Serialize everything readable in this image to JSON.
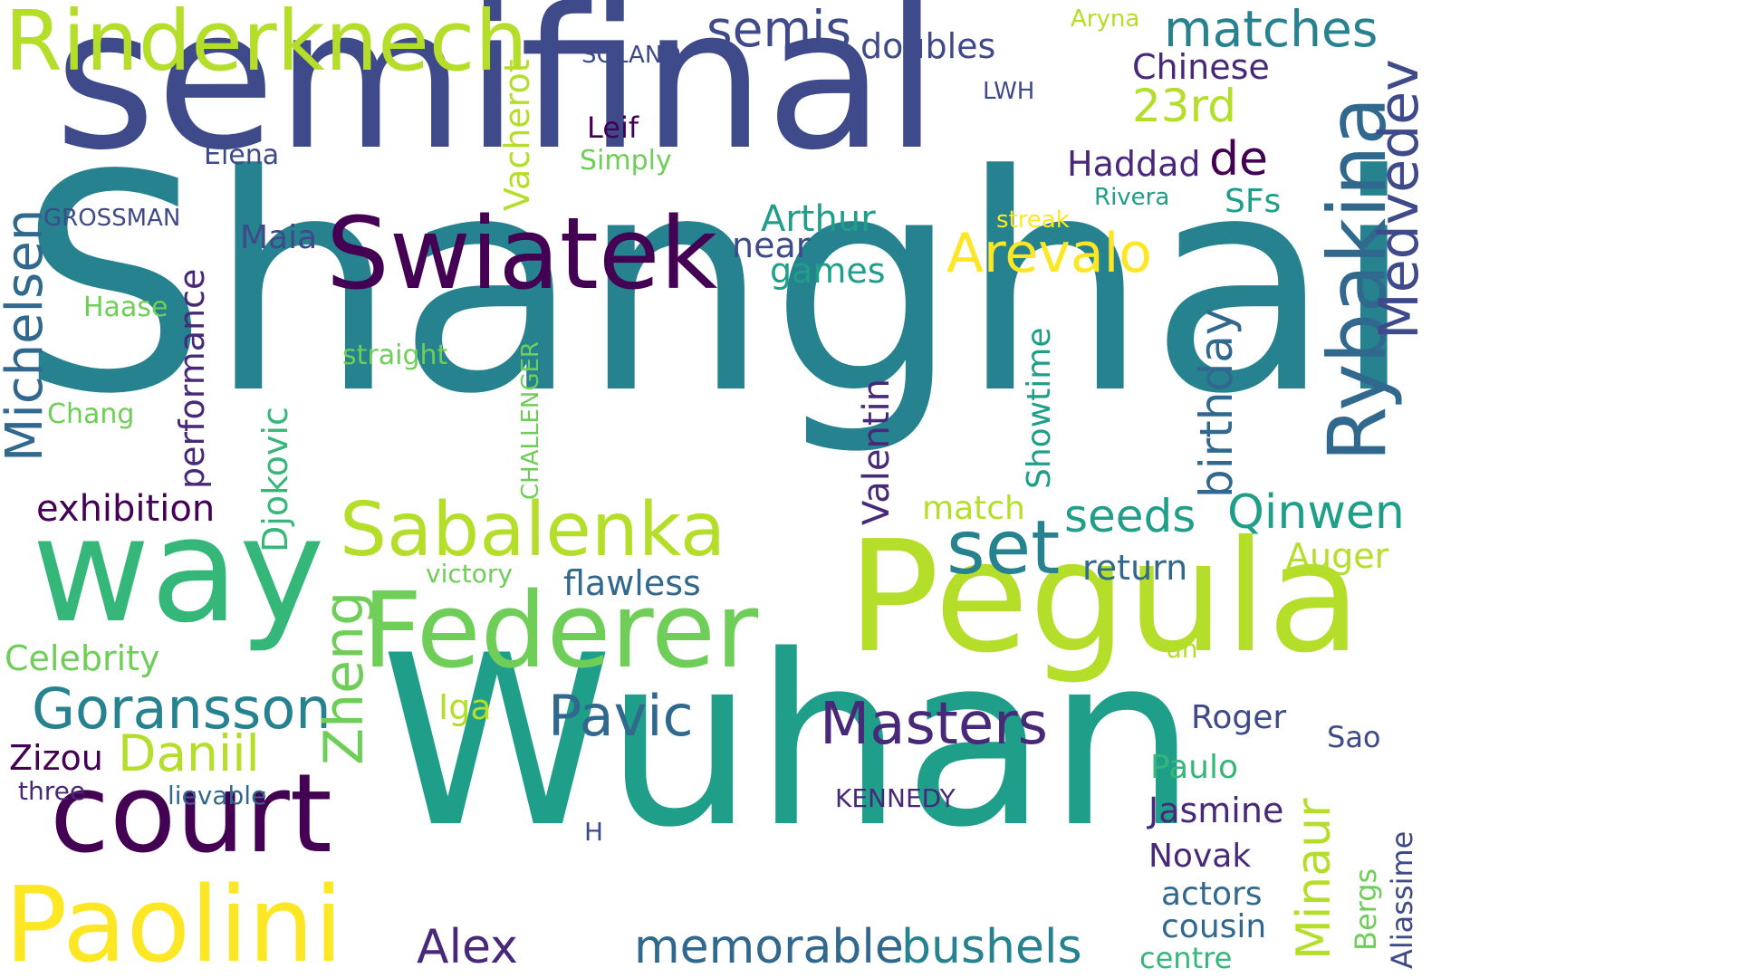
{
  "words": {
    "shanghai": "Shanghai",
    "semifinal": "semifinal",
    "wuhan": "Wuhan",
    "pegula": "Pegula",
    "way": "way",
    "federer": "Federer",
    "swiatek": "Swiatek",
    "court": "court",
    "paolini": "Paolini",
    "rinderknech": "Rinderknech",
    "rybakina": "Rybakina",
    "sabalenka": "Sabalenka",
    "set": "set",
    "medvedev": "Medvedev",
    "goransson": "Goransson",
    "masters": "Masters",
    "matches": "matches",
    "semis": "semis",
    "michelsen": "Michelsen",
    "arevalo": "Arevalo",
    "zheng": "Zheng",
    "pavic": "Pavic",
    "daniil": "Daniil",
    "memorable": "memorable",
    "bushels": "bushels",
    "alex": "Alex",
    "minaur": "Minaur",
    "seeds": "seeds",
    "qinwen": "Qinwen",
    "birthday": "birthday",
    "third": "23rd",
    "de": "de",
    "exhibition": "exhibition",
    "valentin": "Valentin",
    "djokovic": "Djokovic",
    "performance": "performance",
    "arthur": "Arthur",
    "near": "near",
    "games": "games",
    "vacherot": "Vacherot",
    "haddad": "Haddad",
    "doubles": "doubles",
    "chinese": "Chinese",
    "flawless": "flawless",
    "return": "return",
    "auger": "Auger",
    "celebrity": "Celebrity",
    "zizou": "Zizou",
    "maia": "Maia",
    "showtime": "Showtime",
    "match": "match",
    "sfs": "SFs",
    "roger": "Roger",
    "paulo": "Paulo",
    "jasmine": "Jasmine",
    "novak": "Novak",
    "actors": "actors",
    "cousin": "cousin",
    "centre": "centre",
    "sao": "Sao",
    "aliassime": "Aliassime",
    "bergs": "Bergs",
    "iga": "Iga",
    "leif": "Leif",
    "elena": "Elena",
    "haase": "Haase",
    "chang": "Chang",
    "straight": "straight",
    "simply": "Simply",
    "victory": "victory",
    "three": "three",
    "lievable": "lievable",
    "kennedy": "KENNEDY",
    "grossman": "GROSSMAN",
    "solano": "SOLANO",
    "aryna": "Aryna",
    "lwh": "LWH",
    "rivera": "Rivera",
    "streak": "streak",
    "challenger": "CHALLENGER",
    "un": "un",
    "h": "H"
  }
}
